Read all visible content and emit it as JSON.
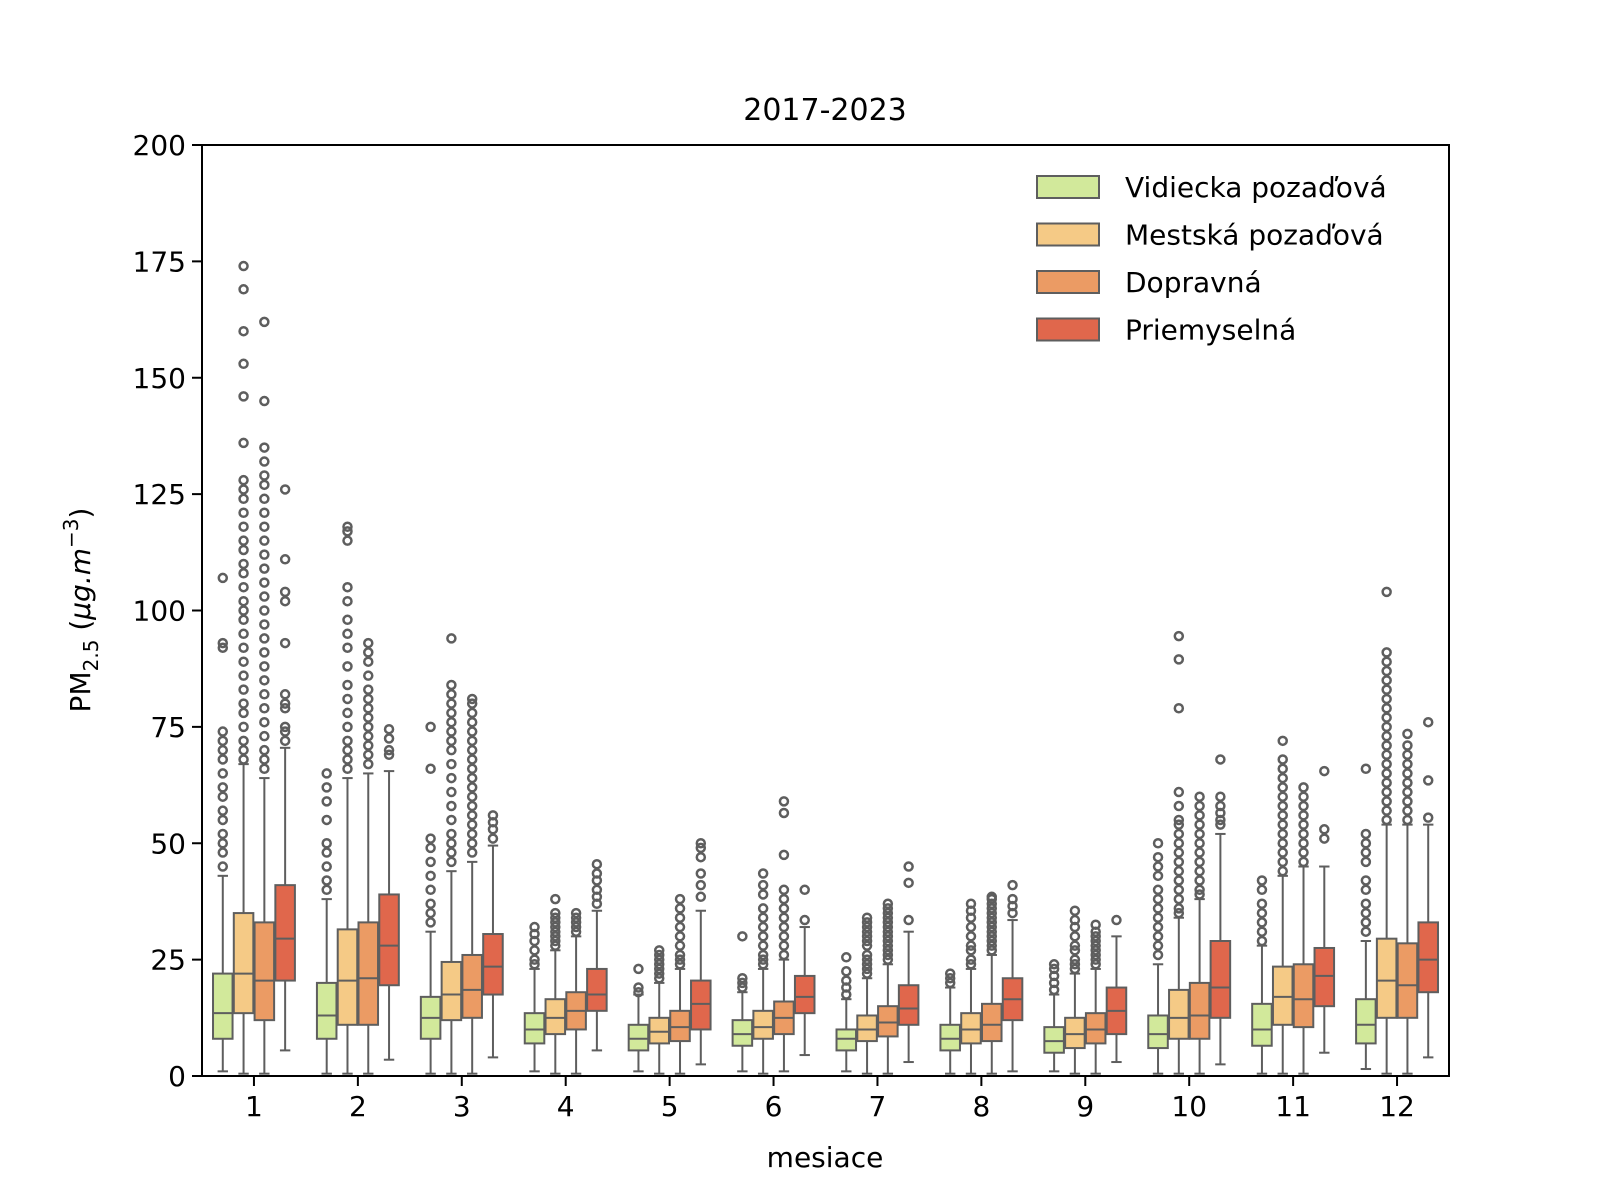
{
  "chart_data": {
    "type": "boxplot",
    "title": "2017-2023",
    "xlabel": "mesiace",
    "ylabel": {
      "main": "PM",
      "sub": "2.5",
      "unit_prefix": " (",
      "unit_mu": "μ",
      "unit_rest": "g.m",
      "unit_sup": "−3",
      "unit_suffix": ")"
    },
    "ylim": [
      0,
      200
    ],
    "yticks": [
      "0",
      "25",
      "50",
      "75",
      "100",
      "125",
      "150",
      "175",
      "200"
    ],
    "categories": [
      "1",
      "2",
      "3",
      "4",
      "5",
      "6",
      "7",
      "8",
      "9",
      "10",
      "11",
      "12"
    ],
    "legend_position": "top-right",
    "series": [
      {
        "name": "Vidiecka pozaďová",
        "color": "#d2e99b",
        "boxes": [
          {
            "low": 1,
            "q1": 8,
            "median": 13.5,
            "q3": 22,
            "high": 43,
            "outliers": [
              45,
              48,
              50,
              52,
              55,
              57,
              60,
              62,
              65,
              68,
              70,
              72,
              74,
              92,
              93,
              107
            ]
          },
          {
            "low": 0.5,
            "q1": 8,
            "median": 13,
            "q3": 20,
            "high": 38,
            "outliers": [
              40,
              42,
              45,
              48,
              50,
              55,
              59,
              62,
              65
            ]
          },
          {
            "low": 0.5,
            "q1": 8,
            "median": 12.5,
            "q3": 17,
            "high": 31,
            "outliers": [
              33,
              35,
              37,
              40,
              43,
              46,
              49,
              51,
              66,
              75
            ]
          },
          {
            "low": 1,
            "q1": 7,
            "median": 10,
            "q3": 13.5,
            "high": 23,
            "outliers": [
              24,
              25,
              27,
              29,
              30.5,
              32
            ]
          },
          {
            "low": 1,
            "q1": 5.5,
            "median": 8,
            "q3": 11,
            "high": 17.5,
            "outliers": [
              18,
              19,
              23
            ]
          },
          {
            "low": 1,
            "q1": 6.5,
            "median": 9,
            "q3": 12,
            "high": 18,
            "outliers": [
              19,
              20,
              21,
              30
            ]
          },
          {
            "low": 1,
            "q1": 5.5,
            "median": 8,
            "q3": 10,
            "high": 16.5,
            "outliers": [
              17.5,
              19,
              20.5,
              22.5,
              25.5
            ]
          },
          {
            "low": 0.5,
            "q1": 5.5,
            "median": 8,
            "q3": 11,
            "high": 19,
            "outliers": [
              20,
              21,
              22
            ]
          },
          {
            "low": 1,
            "q1": 5,
            "median": 7.5,
            "q3": 10.5,
            "high": 17.5,
            "outliers": [
              18.5,
              20,
              21.5,
              23,
              24
            ]
          },
          {
            "low": 0.5,
            "q1": 6,
            "median": 9,
            "q3": 13,
            "high": 24,
            "outliers": [
              26,
              28,
              30,
              32,
              34,
              36,
              38,
              40,
              43,
              45,
              47,
              50
            ]
          },
          {
            "low": 0.5,
            "q1": 6.5,
            "median": 10,
            "q3": 15.5,
            "high": 28,
            "outliers": [
              29,
              31,
              33,
              35,
              37,
              40,
              42
            ]
          },
          {
            "low": 1.5,
            "q1": 7,
            "median": 11,
            "q3": 16.5,
            "high": 29,
            "outliers": [
              31,
              33,
              35,
              37,
              40,
              42,
              46,
              48,
              50,
              52,
              66
            ]
          }
        ]
      },
      {
        "name": "Mestská pozaďová",
        "color": "#f5ca86",
        "boxes": [
          {
            "low": 0.5,
            "q1": 13.5,
            "median": 22,
            "q3": 35,
            "high": 67,
            "outliers": [
              68,
              70,
              72,
              75,
              78,
              80,
              83,
              86,
              89,
              92,
              95,
              98,
              100,
              102,
              105,
              108,
              110,
              113,
              115,
              118,
              121,
              124,
              126,
              128,
              136,
              146,
              153,
              160,
              169,
              174
            ]
          },
          {
            "low": 0.5,
            "q1": 11,
            "median": 20.5,
            "q3": 31.5,
            "high": 64,
            "outliers": [
              66,
              68,
              70,
              72,
              75,
              78,
              81,
              84,
              88,
              92,
              95,
              98,
              102,
              105,
              115,
              117,
              118
            ]
          },
          {
            "low": 0.5,
            "q1": 12,
            "median": 17.5,
            "q3": 24.5,
            "high": 44,
            "outliers": [
              46,
              48,
              50,
              52,
              55,
              58,
              61,
              64,
              67,
              70,
              72,
              74,
              76,
              78,
              80,
              82,
              84,
              94
            ]
          },
          {
            "low": 0.5,
            "q1": 9,
            "median": 12.5,
            "q3": 16.5,
            "high": 27,
            "outliers": [
              28,
              29,
              30,
              31,
              32,
              33,
              34,
              35,
              38
            ]
          },
          {
            "low": 0.5,
            "q1": 7,
            "median": 9.5,
            "q3": 12.5,
            "high": 20,
            "outliers": [
              21,
              22,
              23,
              24,
              25,
              26,
              27
            ]
          },
          {
            "low": 0.5,
            "q1": 8,
            "median": 10.5,
            "q3": 14,
            "high": 23,
            "outliers": [
              24,
              25,
              26,
              28,
              30,
              32,
              34,
              36,
              39,
              41,
              43.5
            ]
          },
          {
            "low": 0.5,
            "q1": 7.5,
            "median": 10,
            "q3": 13,
            "high": 21,
            "outliers": [
              22,
              23,
              24,
              25,
              26,
              28,
              29,
              30,
              31,
              32,
              33,
              34
            ]
          },
          {
            "low": 0.5,
            "q1": 7,
            "median": 10,
            "q3": 13.5,
            "high": 23,
            "outliers": [
              24,
              25,
              27,
              28,
              30,
              32,
              34,
              35.5,
              37
            ]
          },
          {
            "low": 0.5,
            "q1": 6,
            "median": 9,
            "q3": 12.5,
            "high": 22,
            "outliers": [
              23,
              24,
              25,
              27,
              28,
              30,
              32,
              33.5,
              35.5
            ]
          },
          {
            "low": 0.5,
            "q1": 8,
            "median": 12.5,
            "q3": 18.5,
            "high": 34,
            "outliers": [
              35,
              36,
              38,
              40,
              42,
              44,
              46,
              48,
              50,
              52,
              54,
              55,
              58,
              61,
              79,
              89.5,
              94.5
            ]
          },
          {
            "low": 0.5,
            "q1": 11,
            "median": 17,
            "q3": 23.5,
            "high": 43,
            "outliers": [
              44,
              46,
              48,
              50,
              52,
              54,
              56,
              58,
              60,
              62,
              64,
              66,
              68,
              72
            ]
          },
          {
            "low": 0.5,
            "q1": 12.5,
            "median": 20.5,
            "q3": 29.5,
            "high": 54,
            "outliers": [
              55,
              57,
              59,
              61,
              63,
              65,
              67,
              69,
              71,
              73,
              75,
              77,
              79,
              81,
              83,
              85,
              87,
              89,
              91,
              104
            ]
          }
        ]
      },
      {
        "name": "Dopravná",
        "color": "#eb9b64",
        "boxes": [
          {
            "low": 0.5,
            "q1": 12,
            "median": 20.5,
            "q3": 33,
            "high": 64,
            "outliers": [
              66,
              68,
              70,
              73,
              76,
              79,
              82,
              85,
              88,
              91,
              94,
              97,
              100,
              103,
              106,
              109,
              112,
              115,
              118,
              121,
              124,
              127,
              129,
              132,
              135,
              145,
              162
            ]
          },
          {
            "low": 0.5,
            "q1": 11,
            "median": 21,
            "q3": 33,
            "high": 65,
            "outliers": [
              67,
              69,
              71,
              73,
              75,
              77,
              79,
              81,
              83,
              86,
              89,
              91,
              93
            ]
          },
          {
            "low": 0.5,
            "q1": 12.5,
            "median": 18.5,
            "q3": 26,
            "high": 46,
            "outliers": [
              48,
              50,
              52,
              54,
              56,
              58,
              60,
              62,
              64,
              66,
              68,
              70,
              72,
              74,
              76,
              78,
              80,
              81
            ]
          },
          {
            "low": 0.5,
            "q1": 10,
            "median": 14,
            "q3": 18,
            "high": 30,
            "outliers": [
              31,
              32,
              33,
              34,
              35
            ]
          },
          {
            "low": 0.5,
            "q1": 7.5,
            "median": 10.5,
            "q3": 14,
            "high": 23,
            "outliers": [
              24,
              25,
              26,
              28,
              30,
              32,
              34,
              36,
              38
            ]
          },
          {
            "low": 1,
            "q1": 9,
            "median": 12.5,
            "q3": 16,
            "high": 25,
            "outliers": [
              26,
              28,
              30,
              32,
              34,
              36,
              38,
              40,
              47.5,
              56.5,
              59
            ]
          },
          {
            "low": 0.5,
            "q1": 8.5,
            "median": 11.5,
            "q3": 15,
            "high": 24,
            "outliers": [
              25,
              26,
              27,
              28,
              29,
              30,
              31,
              32,
              33,
              34,
              35,
              36,
              37
            ]
          },
          {
            "low": 0.5,
            "q1": 7.5,
            "median": 11,
            "q3": 15.5,
            "high": 26,
            "outliers": [
              27,
              28,
              29,
              30,
              31,
              32,
              33,
              34,
              35,
              36,
              37,
              38,
              38.5
            ]
          },
          {
            "low": 0.5,
            "q1": 7,
            "median": 10,
            "q3": 13.5,
            "high": 23,
            "outliers": [
              24,
              25,
              26,
              27,
              28,
              29,
              30,
              31,
              32.5
            ]
          },
          {
            "low": 0.5,
            "q1": 8,
            "median": 13,
            "q3": 20,
            "high": 38,
            "outliers": [
              39,
              40,
              42,
              44,
              46,
              48,
              50,
              52,
              54,
              56,
              58,
              60
            ]
          },
          {
            "low": 0.5,
            "q1": 10.5,
            "median": 16.5,
            "q3": 24,
            "high": 45,
            "outliers": [
              46,
              48,
              50,
              52,
              54,
              56,
              58,
              60,
              62
            ]
          },
          {
            "low": 0.5,
            "q1": 12.5,
            "median": 19.5,
            "q3": 28.5,
            "high": 54,
            "outliers": [
              55,
              57,
              59,
              61,
              63,
              65,
              67,
              69,
              71,
              73.5
            ]
          }
        ]
      },
      {
        "name": "Priemyselná",
        "color": "#e0674c",
        "boxes": [
          {
            "low": 5.5,
            "q1": 20.5,
            "median": 29.5,
            "q3": 41,
            "high": 70.5,
            "outliers": [
              72,
              74,
              75,
              79,
              80,
              82,
              93,
              102,
              104,
              111,
              126
            ]
          },
          {
            "low": 3.5,
            "q1": 19.5,
            "median": 28,
            "q3": 39,
            "high": 65.5,
            "outliers": [
              69,
              70,
              72.5,
              74.5
            ]
          },
          {
            "low": 4,
            "q1": 17.5,
            "median": 23.5,
            "q3": 30.5,
            "high": 49.5,
            "outliers": [
              51,
              53,
              54.5,
              56
            ]
          },
          {
            "low": 5.5,
            "q1": 14,
            "median": 17.5,
            "q3": 23,
            "high": 35.5,
            "outliers": [
              37,
              38.5,
              40,
              42,
              43.5,
              45.5
            ]
          },
          {
            "low": 2.5,
            "q1": 10,
            "median": 15.5,
            "q3": 20.5,
            "high": 35.5,
            "outliers": [
              38.5,
              41,
              43.5,
              47,
              49,
              50
            ]
          },
          {
            "low": 4.5,
            "q1": 13.5,
            "median": 17,
            "q3": 21.5,
            "high": 32,
            "outliers": [
              33.5,
              40
            ]
          },
          {
            "low": 3,
            "q1": 11,
            "median": 14.5,
            "q3": 19.5,
            "high": 31,
            "outliers": [
              33.5,
              41.5,
              45
            ]
          },
          {
            "low": 1,
            "q1": 12,
            "median": 16.5,
            "q3": 21,
            "high": 33.5,
            "outliers": [
              35,
              36.5,
              38,
              41
            ]
          },
          {
            "low": 3,
            "q1": 9,
            "median": 14,
            "q3": 19,
            "high": 30,
            "outliers": [
              33.5
            ]
          },
          {
            "low": 2.5,
            "q1": 12.5,
            "median": 19,
            "q3": 29,
            "high": 52,
            "outliers": [
              54,
              55,
              56.5,
              58,
              60,
              68
            ]
          },
          {
            "low": 5,
            "q1": 15,
            "median": 21.5,
            "q3": 27.5,
            "high": 45,
            "outliers": [
              51,
              53,
              65.5
            ]
          },
          {
            "low": 4,
            "q1": 18,
            "median": 25,
            "q3": 33,
            "high": 54,
            "outliers": [
              55.5,
              63.5,
              76
            ]
          }
        ]
      }
    ]
  }
}
